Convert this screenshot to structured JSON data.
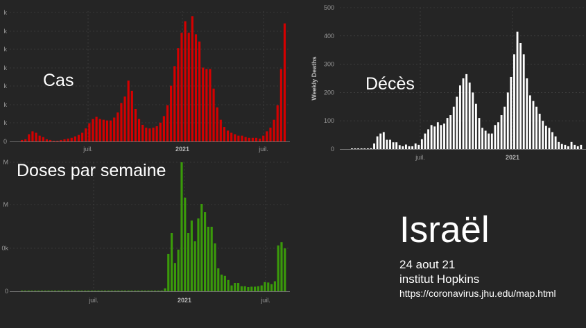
{
  "overlay": {
    "cases_label": "Cas",
    "deaths_label": "Décès",
    "doses_label": "Doses par semaine",
    "country": "Israël",
    "date": "24 aout 21",
    "source_name": "institut Hopkins",
    "source_url": "https://coronavirus.jhu.edu/map.html"
  },
  "colors": {
    "cases": "#d40000",
    "deaths": "#ffffff",
    "doses": "#3a9a0a",
    "background": "#252525"
  },
  "chart_data": [
    {
      "id": "cases",
      "type": "bar",
      "title": "Cas",
      "series": [
        {
          "color": "#d40000",
          "values": [
            2,
            3,
            10,
            14,
            12,
            8,
            6,
            3,
            2,
            1,
            1,
            2,
            3,
            4,
            5,
            7,
            9,
            12,
            18,
            25,
            31,
            34,
            31,
            30,
            29,
            29,
            33,
            40,
            53,
            62,
            84,
            70,
            45,
            31,
            23,
            19,
            18,
            19,
            21,
            26,
            35,
            50,
            77,
            104,
            129,
            150,
            166,
            150,
            173,
            148,
            138,
            102,
            100,
            100,
            73,
            47,
            30,
            20,
            15,
            12,
            10,
            8,
            8,
            6,
            5,
            5,
            5,
            4,
            8,
            14,
            19,
            30,
            50,
            100,
            163
          ]
        }
      ],
      "x_ticks": [
        "juil.",
        "2021",
        "juil."
      ],
      "y_ticks": [
        "k",
        "k",
        "k",
        "k",
        "k",
        "k",
        "k"
      ]
    },
    {
      "id": "deaths",
      "type": "bar",
      "ylabel": "Weekly Deaths",
      "ylim": [
        0,
        500
      ],
      "y_ticks": [
        "0",
        "100",
        "200",
        "300",
        "400",
        "500"
      ],
      "x_ticks": [
        "juil.",
        "2021"
      ],
      "series": [
        {
          "color": "#ffffff",
          "values": [
            2,
            2,
            2,
            2,
            2,
            2,
            3,
            20,
            45,
            55,
            60,
            33,
            33,
            24,
            24,
            14,
            10,
            16,
            10,
            10,
            20,
            15,
            35,
            55,
            70,
            85,
            80,
            95,
            85,
            90,
            110,
            120,
            150,
            185,
            225,
            250,
            265,
            235,
            200,
            160,
            110,
            75,
            65,
            55,
            55,
            85,
            95,
            120,
            150,
            200,
            255,
            335,
            415,
            375,
            335,
            250,
            190,
            170,
            150,
            125,
            100,
            82,
            75,
            60,
            45,
            25,
            18,
            15,
            10,
            25,
            15,
            10,
            15
          ]
        }
      ]
    },
    {
      "id": "doses",
      "type": "bar",
      "title": "Doses par semaine",
      "x_ticks": [
        "juil.",
        "2021",
        "juil."
      ],
      "y_ticks": [
        "0",
        "0k",
        "M",
        "M"
      ],
      "series": [
        {
          "color": "#3a9a0a",
          "values": [
            1,
            1,
            1,
            1,
            1,
            1,
            1,
            1,
            1,
            1,
            1,
            1,
            1,
            1,
            1,
            1,
            1,
            1,
            1,
            1,
            1,
            1,
            1,
            1,
            1,
            1,
            1,
            1,
            1,
            1,
            1,
            1,
            1,
            1,
            1,
            1,
            1,
            1,
            1,
            1,
            1,
            1,
            1,
            7,
            90,
            140,
            68,
            100,
            310,
            225,
            140,
            170,
            120,
            175,
            210,
            190,
            155,
            155,
            115,
            55,
            40,
            37,
            27,
            14,
            20,
            20,
            12,
            12,
            10,
            11,
            11,
            12,
            14,
            22,
            21,
            17,
            24,
            110,
            118,
            103
          ]
        }
      ]
    }
  ]
}
